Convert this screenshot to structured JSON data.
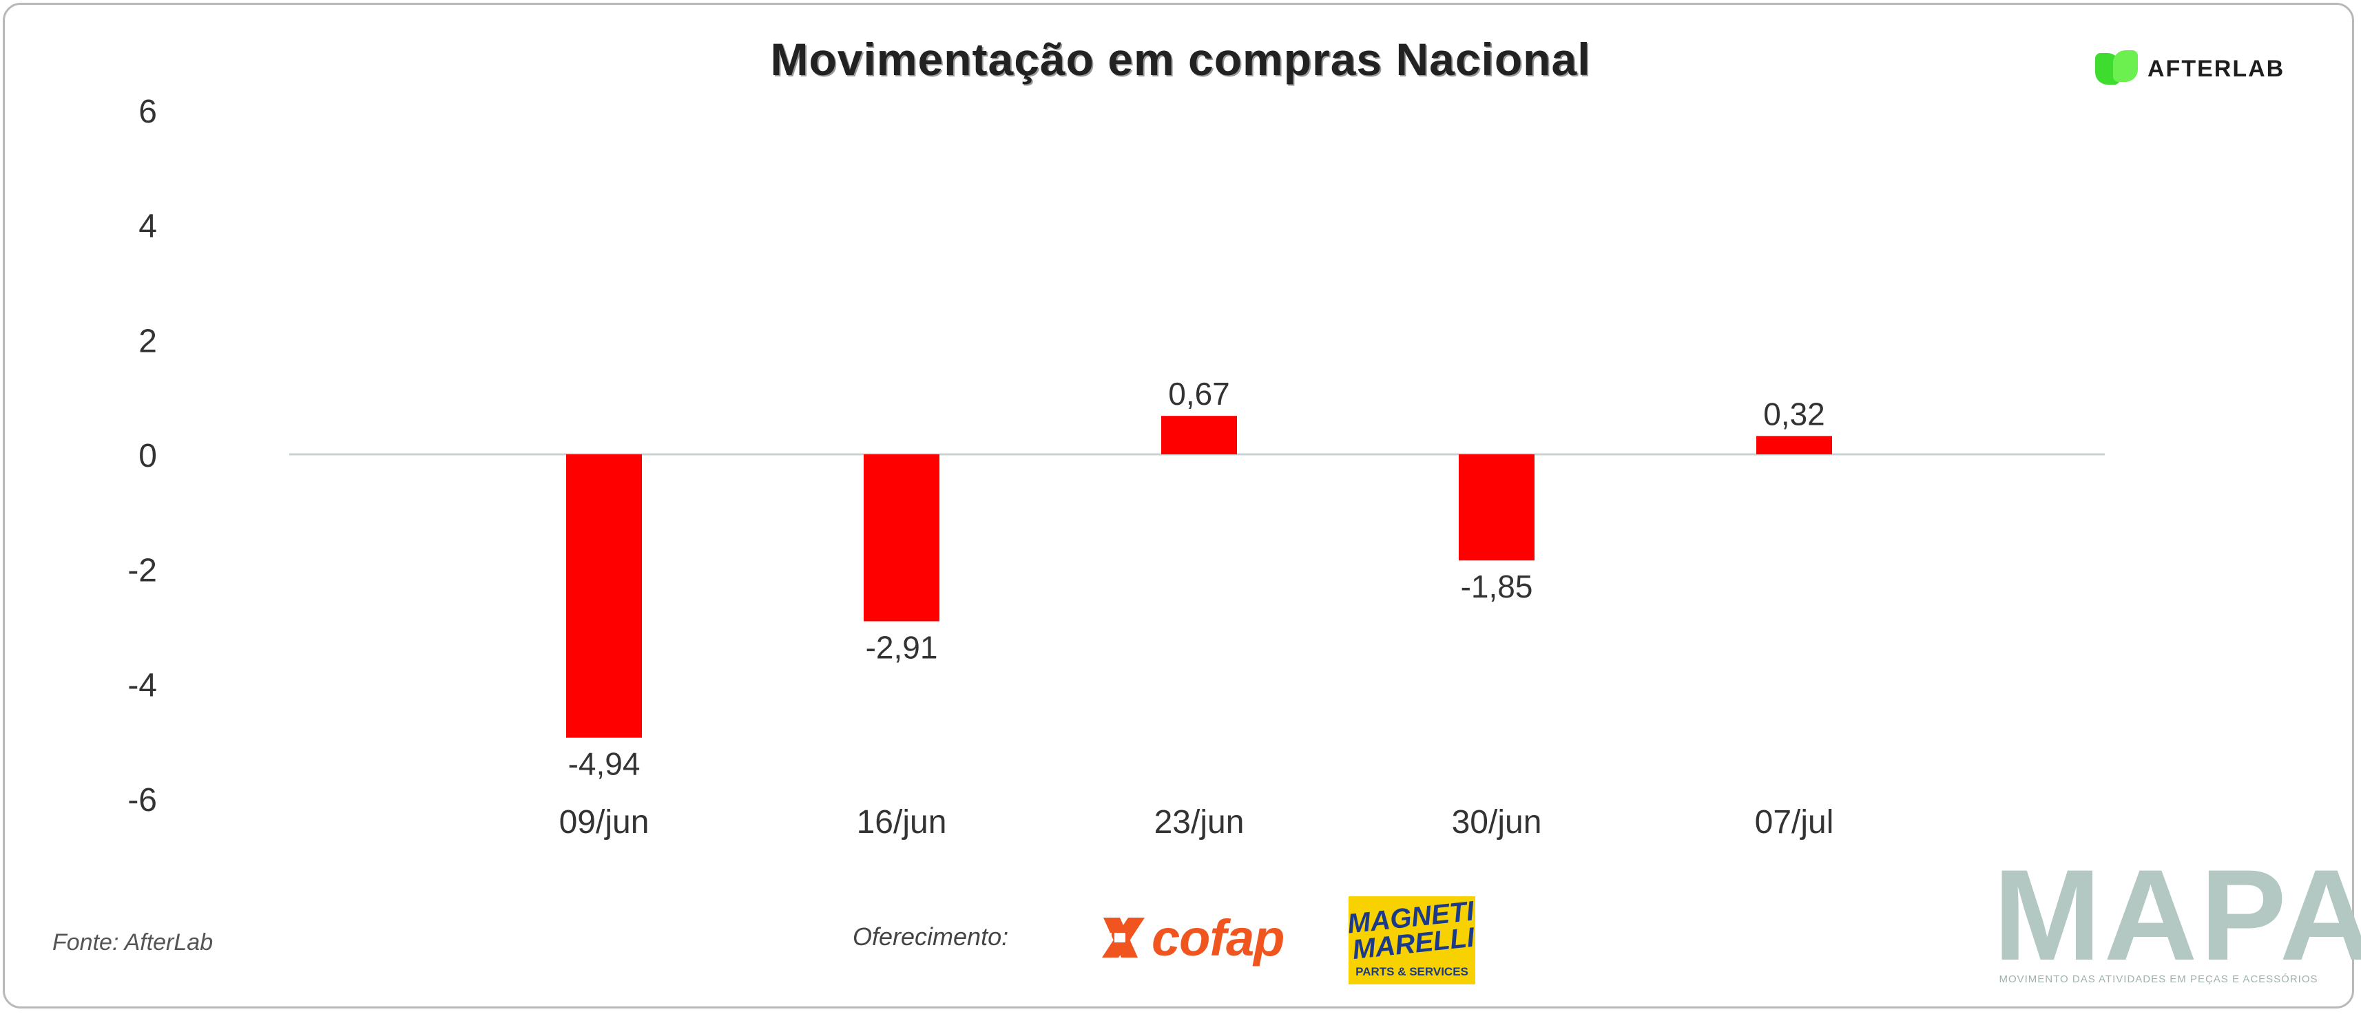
{
  "chart_data": {
    "type": "bar",
    "title": "Movimentação em compras Nacional",
    "categories": [
      "09/jun",
      "16/jun",
      "23/jun",
      "30/jun",
      "07/jul"
    ],
    "values": [
      -4.94,
      -2.91,
      0.67,
      -1.85,
      0.32
    ],
    "value_labels": [
      "-4,94",
      "-2,91",
      "0,67",
      "-1,85",
      "0,32"
    ],
    "ylim": [
      -6,
      6
    ],
    "yticks": [
      6,
      4,
      2,
      0,
      -2,
      -4,
      -6
    ],
    "xlabel": "",
    "ylabel": "",
    "grid": false,
    "legend": "none",
    "bar_color": "#ff0000",
    "baseline_color": "#c9d1d1"
  },
  "footer": {
    "source": "Fonte: AfterLab",
    "sponsor_label": "Oferecimento:"
  },
  "logos": {
    "afterlab": "AFTERLAB",
    "cofap": "cofap",
    "magneti_marelli": "MAGNETI\nMARELLI",
    "magneti_marelli_sub": "PARTS & SERVICES",
    "mapa": "MAPA",
    "mapa_tagline": "MOVIMENTO DAS ATIVIDADES EM PEÇAS E ACESSÓRIOS"
  },
  "colors": {
    "frame": "#b8b8b8",
    "afterlab_green": "#3ddc2f",
    "cofap_orange": "#f0541f",
    "magneti_yellow": "#f7d100",
    "magneti_blue": "#1b3a8c",
    "mapa_gray": "#b4c8c3"
  }
}
